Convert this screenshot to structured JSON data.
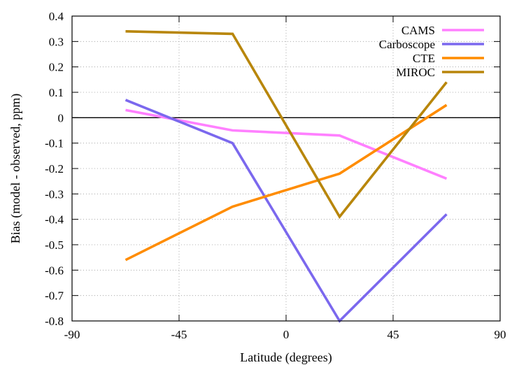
{
  "chart_data": {
    "type": "line",
    "xlabel": "Latitude (degrees)",
    "ylabel": "Bias (model - observed, ppm)",
    "xlim": [
      -90,
      90
    ],
    "ylim": [
      -0.8,
      0.4
    ],
    "xticks": [
      -90,
      -45,
      0,
      45,
      90
    ],
    "yticks": [
      0.4,
      0.3,
      0.2,
      0.1,
      0,
      -0.1,
      -0.2,
      -0.3,
      -0.4,
      -0.5,
      -0.6,
      -0.7,
      -0.8
    ],
    "xtick_labels": [
      "-90",
      "-45",
      "0",
      "45",
      "90"
    ],
    "ytick_labels": [
      "0.4",
      "0.3",
      "0.2",
      "0.1",
      "0",
      "-0.1",
      "-0.2",
      "-0.3",
      "-0.4",
      "-0.5",
      "-0.6",
      "-0.7",
      "-0.8"
    ],
    "x": [
      -67.5,
      -22.5,
      22.5,
      67.5
    ],
    "zero_line": true,
    "legend_position": "top-right",
    "series": [
      {
        "name": "CAMS",
        "color": "#ff80ff",
        "values": [
          0.03,
          -0.05,
          -0.07,
          -0.24
        ]
      },
      {
        "name": "Carboscope",
        "color": "#7b68ee",
        "values": [
          0.07,
          -0.1,
          -0.8,
          -0.38
        ]
      },
      {
        "name": "CTE",
        "color": "#ff8c00",
        "values": [
          -0.56,
          -0.35,
          -0.22,
          0.05
        ]
      },
      {
        "name": "MIROC",
        "color": "#b8860b",
        "values": [
          0.34,
          0.33,
          -0.39,
          0.14
        ]
      }
    ]
  }
}
